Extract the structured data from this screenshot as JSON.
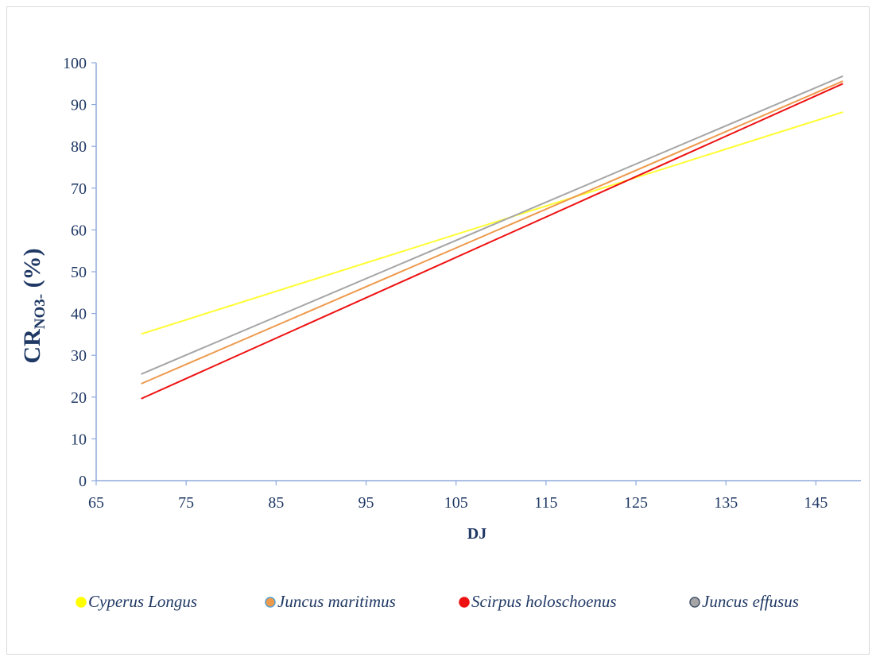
{
  "chart_data": {
    "type": "line",
    "title": "",
    "xlabel": "DJ",
    "ylabel_main": "CR",
    "ylabel_sub": "NO3-",
    "ylabel_unit": " (%)",
    "xlim": [
      65,
      150
    ],
    "ylim": [
      0,
      100
    ],
    "x_ticks": [
      65,
      75,
      85,
      95,
      105,
      115,
      125,
      135,
      145
    ],
    "y_ticks": [
      0,
      10,
      20,
      30,
      40,
      50,
      60,
      70,
      80,
      90,
      100
    ],
    "grid": false,
    "legend_position": "bottom",
    "series": [
      {
        "name": "Cyperus Longus",
        "color": "#ffff33",
        "marker_color": "#ffff00",
        "marker_stroke": "#ffff00",
        "x": [
          70,
          148
        ],
        "y": [
          35.1,
          88.2
        ]
      },
      {
        "name": "Juncus maritimus",
        "color": "#ee9a4d",
        "marker_color": "#ee9a4d",
        "marker_stroke": "#5aa0c8",
        "x": [
          70,
          148
        ],
        "y": [
          23.2,
          95.6
        ]
      },
      {
        "name": "Scirpus holoschoenus",
        "color": "#ee1111",
        "marker_color": "#ee1111",
        "marker_stroke": "#ee1111",
        "x": [
          70,
          148
        ],
        "y": [
          19.6,
          95.0
        ]
      },
      {
        "name": "Juncus effusus",
        "color": "#a6a6a6",
        "marker_color": "#a6a6a6",
        "marker_stroke": "#44546a",
        "x": [
          70,
          148
        ],
        "y": [
          25.5,
          96.8
        ]
      }
    ]
  }
}
